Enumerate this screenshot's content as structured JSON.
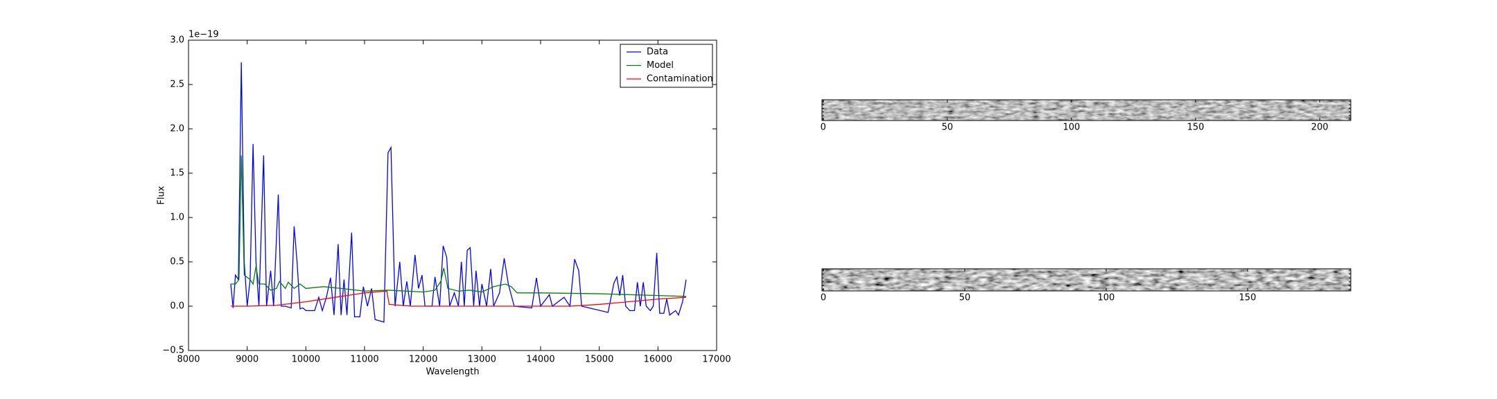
{
  "chart_data": [
    {
      "type": "line",
      "ylabel": "Flux",
      "xlabel": "Wavelength",
      "offset_text": "1e−19",
      "legend": "upper right",
      "xlim": [
        8000,
        17000
      ],
      "xticks": [
        8000,
        9000,
        10000,
        11000,
        12000,
        13000,
        14000,
        15000,
        16000,
        17000
      ],
      "ylim": [
        -0.5,
        3.0
      ],
      "yticks": [
        {
          "value": -0.5,
          "label": "−0.5"
        },
        {
          "value": 0,
          "label": "0.0"
        },
        0.5,
        {
          "value": 1,
          "label": "1.0"
        },
        1.5,
        {
          "value": 2,
          "label": "2.0"
        },
        2.5,
        {
          "value": 3,
          "label": "3.0"
        }
      ],
      "series": [
        {
          "name": "Data",
          "color": "#0000ff",
          "x": [
            8720,
            8760,
            8800,
            8850,
            8900,
            8950,
            9000,
            9050,
            9100,
            9150,
            9200,
            9280,
            9330,
            9400,
            9450,
            9530,
            9580,
            9650,
            9750,
            9800,
            9850,
            9900,
            9950,
            10000,
            10150,
            10220,
            10280,
            10350,
            10420,
            10480,
            10550,
            10600,
            10650,
            10700,
            10780,
            10830,
            10920,
            10980,
            11050,
            11120,
            11180,
            11330,
            11400,
            11450,
            11520,
            11600,
            11660,
            11720,
            11780,
            11860,
            11920,
            11980,
            12030,
            12150,
            12200,
            12280,
            12340,
            12400,
            12450,
            12530,
            12600,
            12650,
            12700,
            12750,
            12800,
            12860,
            12900,
            12960,
            13000,
            13080,
            13150,
            13200,
            13300,
            13380,
            13450,
            13550,
            13850,
            13930,
            14000,
            14150,
            14200,
            14400,
            14500,
            14580,
            14650,
            14700,
            15150,
            15250,
            15300,
            15350,
            15400,
            15450,
            15520,
            15600,
            15650,
            15700,
            15750,
            15800,
            15870,
            15920,
            15980,
            16030,
            16100,
            16150,
            16200,
            16300,
            16350,
            16420,
            16480
          ],
          "values": [
            0.25,
            -0.02,
            0.35,
            0.3,
            2.75,
            0.5,
            0.0,
            0.3,
            1.83,
            0.5,
            0.0,
            1.7,
            0.0,
            0.4,
            0.0,
            1.26,
            0.0,
            0.0,
            -0.02,
            0.9,
            0.5,
            -0.03,
            -0.02,
            -0.05,
            -0.05,
            0.1,
            -0.05,
            0.1,
            0.32,
            -0.1,
            0.7,
            -0.1,
            0.3,
            -0.1,
            0.83,
            -0.12,
            -0.12,
            0.22,
            0.0,
            0.2,
            -0.15,
            -0.18,
            1.73,
            1.79,
            0.0,
            0.5,
            0.0,
            0.28,
            0.0,
            0.58,
            0.2,
            0.35,
            0.0,
            0.0,
            0.33,
            0.0,
            0.68,
            0.55,
            0.0,
            0.15,
            0.0,
            0.5,
            0.0,
            0.63,
            0.66,
            0.0,
            0.4,
            0.0,
            0.25,
            0.0,
            0.42,
            0.0,
            0.15,
            0.54,
            0.25,
            0.0,
            -0.02,
            0.32,
            0.0,
            0.13,
            0.0,
            0.1,
            0.0,
            0.53,
            0.4,
            0.0,
            -0.07,
            0.26,
            0.33,
            0.12,
            0.35,
            0.0,
            -0.05,
            -0.05,
            0.27,
            0.0,
            0.27,
            0.0,
            -0.05,
            0.0,
            0.6,
            -0.08,
            -0.08,
            0.08,
            -0.1,
            -0.05,
            -0.1,
            0.05,
            0.3
          ]
        },
        {
          "name": "Model",
          "color": "#008000",
          "x": [
            8720,
            8800,
            8860,
            8900,
            8950,
            9050,
            9100,
            9150,
            9200,
            9300,
            9400,
            9500,
            9550,
            9650,
            9700,
            9800,
            9900,
            10000,
            10300,
            10600,
            11000,
            11400,
            12000,
            12200,
            12300,
            12350,
            12420,
            12600,
            12800,
            13000,
            13200,
            13400,
            13500,
            13600,
            14000,
            15000,
            16000,
            16480
          ],
          "values": [
            0.25,
            0.25,
            0.3,
            1.7,
            0.35,
            0.3,
            0.25,
            0.45,
            0.25,
            0.25,
            0.18,
            0.2,
            0.28,
            0.2,
            0.27,
            0.2,
            0.25,
            0.2,
            0.22,
            0.2,
            0.17,
            0.18,
            0.16,
            0.18,
            0.28,
            0.43,
            0.2,
            0.17,
            0.18,
            0.16,
            0.22,
            0.25,
            0.22,
            0.15,
            0.15,
            0.14,
            0.12,
            0.11
          ]
        },
        {
          "name": "Contamination",
          "color": "#ff0000",
          "x": [
            8720,
            9000,
            9500,
            10000,
            10500,
            11000,
            11380,
            11420,
            11800,
            12500,
            13500,
            14500,
            15000,
            15500,
            16000,
            16480
          ],
          "values": [
            0.0,
            0.0,
            0.01,
            0.05,
            0.1,
            0.15,
            0.17,
            0.02,
            0.0,
            0.0,
            0.0,
            0.0,
            0.02,
            0.05,
            0.08,
            0.1
          ]
        }
      ]
    },
    {
      "type": "image",
      "xlim": [
        -0.5,
        212.5
      ],
      "xticks": [
        0,
        50,
        100,
        150,
        200
      ]
    },
    {
      "type": "image",
      "xlim": [
        -0.5,
        186.5
      ],
      "xticks": [
        0,
        50,
        100,
        150
      ]
    }
  ]
}
